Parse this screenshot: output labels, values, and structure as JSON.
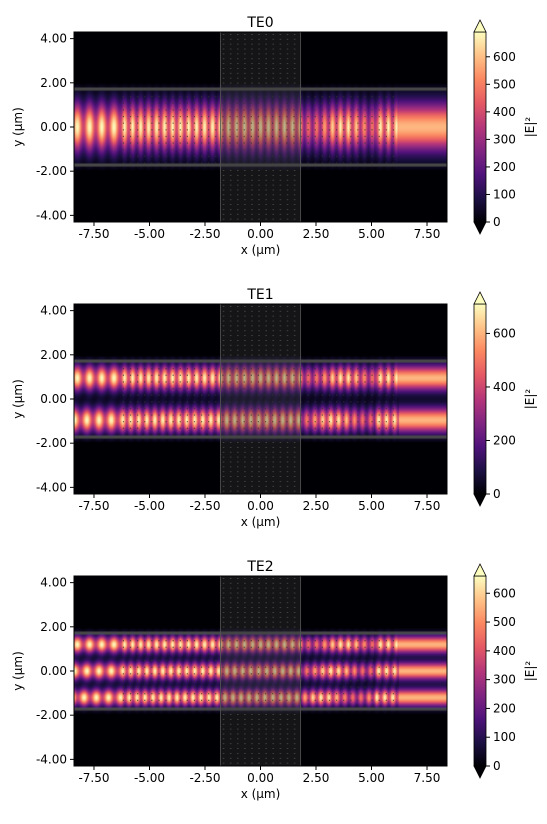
{
  "colormap": {
    "name": "magma",
    "stops": [
      "#000004",
      "#1c1044",
      "#4f127b",
      "#812581",
      "#b5367a",
      "#e55964",
      "#fb8761",
      "#fec287",
      "#fcfdbf"
    ]
  },
  "chart_data": [
    {
      "type": "heatmap",
      "title": "TE0",
      "xlabel": "x (µm)",
      "ylabel": "y (µm)",
      "xlim": [
        -8.4,
        8.4
      ],
      "ylim": [
        -4.3,
        4.3
      ],
      "xticks": [
        "-7.50",
        "-5.00",
        "-2.50",
        "0.00",
        "2.50",
        "5.00",
        "7.50"
      ],
      "yticks": [
        "-4.00",
        "-2.00",
        "0.00",
        "2.00",
        "4.00"
      ],
      "xtick_values": [
        -7.5,
        -5.0,
        -2.5,
        0.0,
        2.5,
        5.0,
        7.5
      ],
      "ytick_values": [
        -4.0,
        -2.0,
        0.0,
        2.0,
        4.0
      ],
      "colorbar": {
        "label": "|E|²",
        "ticks": [
          "0",
          "100",
          "200",
          "300",
          "400",
          "500",
          "600"
        ],
        "tick_values": [
          0,
          100,
          200,
          300,
          400,
          500,
          600
        ],
        "vmax": 690
      },
      "waveguide": {
        "y_range": [
          -1.8,
          1.8
        ]
      },
      "pillar_region": {
        "x_range": [
          -1.8,
          1.8
        ]
      },
      "hole_region": {
        "x_range": [
          -6.2,
          6.2
        ]
      },
      "lobes_y": [
        0.0
      ],
      "lobe_width": 1.05
    },
    {
      "type": "heatmap",
      "title": "TE1",
      "xlabel": "x (µm)",
      "ylabel": "y (µm)",
      "xlim": [
        -8.4,
        8.4
      ],
      "ylim": [
        -4.3,
        4.3
      ],
      "xticks": [
        "-7.50",
        "-5.00",
        "-2.50",
        "0.00",
        "2.50",
        "5.00",
        "7.50"
      ],
      "yticks": [
        "-4.00",
        "-2.00",
        "0.00",
        "2.00",
        "4.00"
      ],
      "xtick_values": [
        -7.5,
        -5.0,
        -2.5,
        0.0,
        2.5,
        5.0,
        7.5
      ],
      "ytick_values": [
        -4.0,
        -2.0,
        0.0,
        2.0,
        4.0
      ],
      "colorbar": {
        "label": "|E|²",
        "ticks": [
          "0",
          "200",
          "400",
          "600"
        ],
        "tick_values": [
          0,
          200,
          400,
          600
        ],
        "vmax": 710
      },
      "waveguide": {
        "y_range": [
          -1.8,
          1.8
        ]
      },
      "pillar_region": {
        "x_range": [
          -1.8,
          1.8
        ]
      },
      "hole_region": {
        "x_range": [
          -6.2,
          6.2
        ]
      },
      "lobes_y": [
        0.95,
        -0.95
      ],
      "lobe_width": 0.55
    },
    {
      "type": "heatmap",
      "title": "TE2",
      "xlabel": "x (µm)",
      "ylabel": "y (µm)",
      "xlim": [
        -8.4,
        8.4
      ],
      "ylim": [
        -4.3,
        4.3
      ],
      "xticks": [
        "-7.50",
        "-5.00",
        "-2.50",
        "0.00",
        "2.50",
        "5.00",
        "7.50"
      ],
      "yticks": [
        "-4.00",
        "-2.00",
        "0.00",
        "2.00",
        "4.00"
      ],
      "xtick_values": [
        -7.5,
        -5.0,
        -2.5,
        0.0,
        2.5,
        5.0,
        7.5
      ],
      "ytick_values": [
        -4.0,
        -2.0,
        0.0,
        2.0,
        4.0
      ],
      "colorbar": {
        "label": "|E|²",
        "ticks": [
          "0",
          "100",
          "200",
          "300",
          "400",
          "500",
          "600"
        ],
        "tick_values": [
          0,
          100,
          200,
          300,
          400,
          500,
          600
        ],
        "vmax": 660
      },
      "waveguide": {
        "y_range": [
          -1.8,
          1.8
        ]
      },
      "pillar_region": {
        "x_range": [
          -1.8,
          1.8
        ]
      },
      "hole_region": {
        "x_range": [
          -6.2,
          6.2
        ]
      },
      "lobes_y": [
        1.2,
        0.0,
        -1.2
      ],
      "lobe_width": 0.38
    }
  ]
}
